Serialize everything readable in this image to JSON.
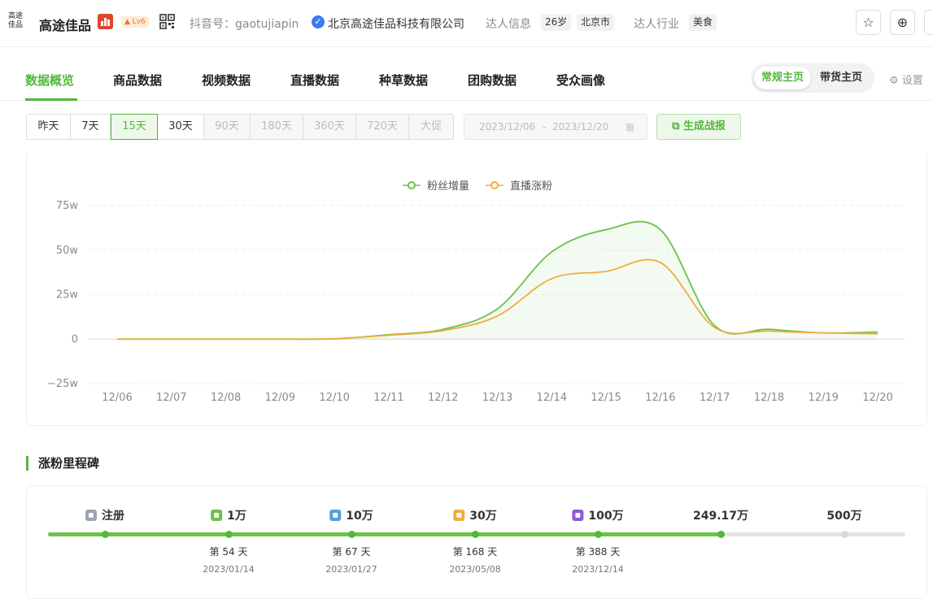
{
  "header": {
    "logo_text": "高途佳品",
    "name": "高途佳品",
    "level": "Lv6",
    "douyin_id": "抖音号：gaotujiapin",
    "company": "北京高途佳品科技有限公司",
    "info_label": "达人信息",
    "age_tag": "26岁",
    "city_tag": "北京市",
    "industry_label": "达人行业",
    "industry_tag": "美食",
    "star_icon": "☆",
    "add_icon": "⊕"
  },
  "tabs": [
    {
      "label": "数据概览",
      "active": true
    },
    {
      "label": "商品数据"
    },
    {
      "label": "视频数据"
    },
    {
      "label": "直播数据"
    },
    {
      "label": "种草数据"
    },
    {
      "label": "团购数据"
    },
    {
      "label": "受众画像"
    }
  ],
  "homepage_toggle": {
    "options": [
      "常规主页",
      "带货主页"
    ],
    "selected": "常规主页"
  },
  "settings_label": "设置",
  "ranges": [
    {
      "label": "昨天",
      "state": "normal"
    },
    {
      "label": "7天",
      "state": "normal"
    },
    {
      "label": "15天",
      "state": "selected"
    },
    {
      "label": "30天",
      "state": "normal"
    },
    {
      "label": "90天",
      "state": "disabled"
    },
    {
      "label": "180天",
      "state": "disabled"
    },
    {
      "label": "360天",
      "state": "disabled"
    },
    {
      "label": "720天",
      "state": "disabled"
    },
    {
      "label": "大促",
      "state": "disabled"
    }
  ],
  "date_range": {
    "start": "2023/12/06",
    "end": "2023/12/20",
    "separator": "-"
  },
  "report_button": "生成战报",
  "colors": {
    "accent": "#52b83a",
    "fans": "#6cc24a",
    "live": "#f0ad3c"
  },
  "chart_data": {
    "type": "line",
    "x": [
      "12/06",
      "12/07",
      "12/08",
      "12/09",
      "12/10",
      "12/11",
      "12/12",
      "12/13",
      "12/14",
      "12/15",
      "12/16",
      "12/17",
      "12/18",
      "12/19",
      "12/20"
    ],
    "series": [
      {
        "name": "粉丝增量",
        "values": [
          0,
          0,
          0,
          0,
          0.2,
          2.5,
          5.5,
          17,
          49,
          61.5,
          61.5,
          7.5,
          5.5,
          3.5,
          4
        ]
      },
      {
        "name": "直播涨粉",
        "values": [
          0,
          0,
          0,
          0,
          0.2,
          2.2,
          4.8,
          13,
          34,
          38,
          43,
          6.5,
          4.5,
          3.5,
          3
        ]
      }
    ],
    "yticks": [
      "75w",
      "50w",
      "25w",
      "0",
      "−25w"
    ],
    "ylim": [
      -25,
      75
    ],
    "legend": "top-center"
  },
  "milestones": {
    "title": "涨粉里程碑",
    "items": [
      {
        "label": "注册",
        "icon_color": "#9aa3b0",
        "day": "",
        "date": "",
        "reached": true
      },
      {
        "label": "1万",
        "icon_color": "#6cc24a",
        "day": "第 54 天",
        "date": "2023/01/14",
        "reached": true
      },
      {
        "label": "10万",
        "icon_color": "#5b9ae0",
        "day": "第 67 天",
        "date": "2023/01/27",
        "reached": true
      },
      {
        "label": "30万",
        "icon_color": "#f0ad3c",
        "day": "第 168 天",
        "date": "2023/05/08",
        "reached": true
      },
      {
        "label": "100万",
        "icon_color": "#8e5ad6",
        "day": "第 388 天",
        "date": "2023/12/14",
        "reached": true
      },
      {
        "label": "249.17万",
        "icon_color": "",
        "day": "",
        "date": "",
        "reached": true
      },
      {
        "label": "500万",
        "icon_color": "",
        "day": "",
        "date": "",
        "reached": false
      }
    ]
  }
}
